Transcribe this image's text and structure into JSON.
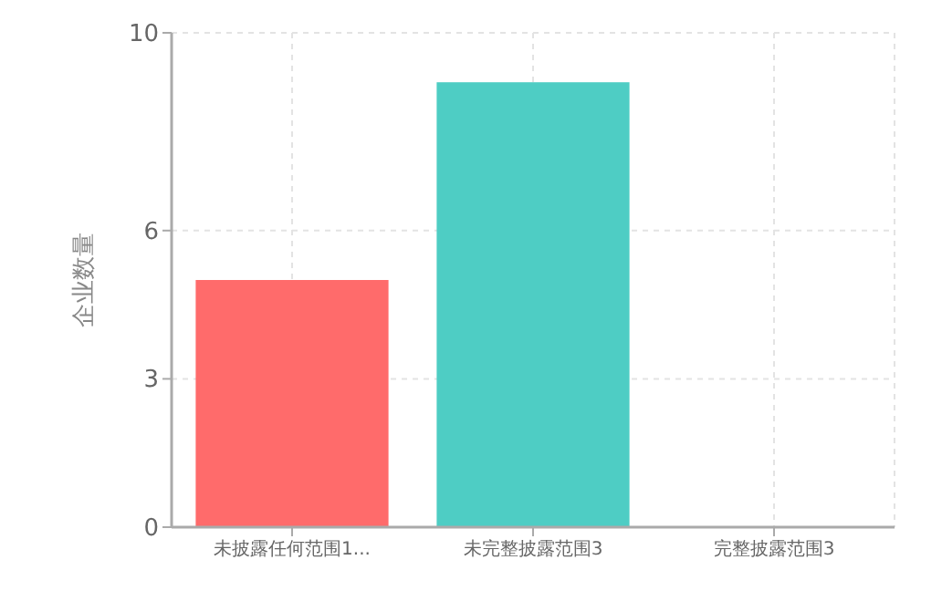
{
  "chart_data": {
    "type": "bar",
    "ylabel": "企业数量",
    "categories": [
      "未披露任何范围1...",
      "未完整披露范围3",
      "完整披露范围3"
    ],
    "values": [
      5,
      9,
      0
    ],
    "colors": [
      "#ff6b6b",
      "#4ecdc4",
      null
    ],
    "ylim": [
      0,
      10
    ],
    "yticks": [
      0,
      3,
      6,
      10
    ],
    "grid": true
  }
}
